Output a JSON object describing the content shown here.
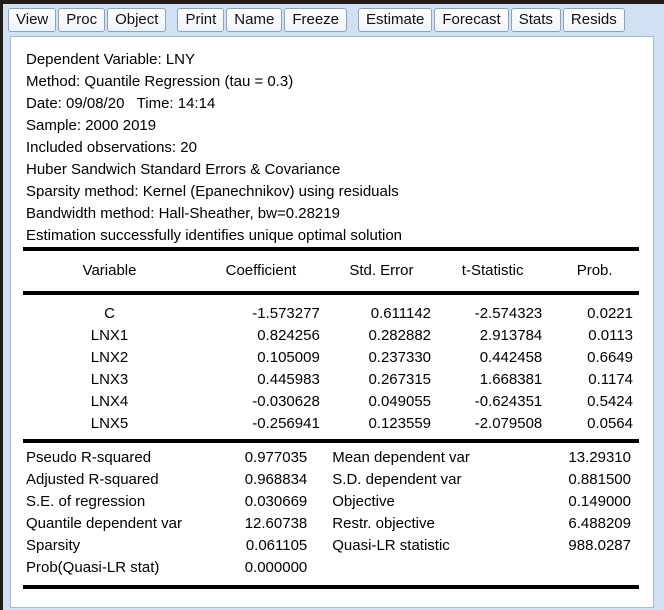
{
  "window": {
    "app": "EViews equation output",
    "colors": {
      "frame_blue": "#cfe1f3",
      "border_dark": "#241d17",
      "button_border": "#8ea3ba",
      "content_bg": "#ffffff",
      "text": "#000000"
    }
  },
  "toolbar": {
    "groups": [
      {
        "buttons": [
          "View",
          "Proc",
          "Object"
        ]
      },
      {
        "buttons": [
          "Print",
          "Name",
          "Freeze"
        ]
      },
      {
        "buttons": [
          "Estimate",
          "Forecast",
          "Stats",
          "Resids"
        ]
      }
    ]
  },
  "header_lines": [
    "Dependent Variable: LNY",
    "Method: Quantile Regression (tau = 0.3)",
    "Date: 09/08/20   Time: 14:14",
    "Sample: 2000 2019",
    "Included observations: 20",
    "Huber Sandwich Standard Errors & Covariance",
    "Sparsity method: Kernel (Epanechnikov) using residuals",
    "Bandwidth method: Hall-Sheather, bw=0.28219",
    "Estimation successfully identifies unique optimal solution"
  ],
  "coef_table": {
    "columns": [
      "Variable",
      "Coefficient",
      "Std. Error",
      "t-Statistic",
      "Prob."
    ],
    "rows": [
      [
        "C",
        "-1.573277",
        "0.611142",
        "-2.574323",
        "0.0221"
      ],
      [
        "LNX1",
        "0.824256",
        "0.282882",
        "2.913784",
        "0.0113"
      ],
      [
        "LNX2",
        "0.105009",
        "0.237330",
        "0.442458",
        "0.6649"
      ],
      [
        "LNX3",
        "0.445983",
        "0.267315",
        "1.668381",
        "0.1174"
      ],
      [
        "LNX4",
        "-0.030628",
        "0.049055",
        "-0.624351",
        "0.5424"
      ],
      [
        "LNX5",
        "-0.256941",
        "0.123559",
        "-2.079508",
        "0.0564"
      ]
    ]
  },
  "summary_stats": {
    "rows": [
      [
        "Pseudo R-squared",
        "0.977035",
        "Mean dependent var",
        "13.29310"
      ],
      [
        "Adjusted R-squared",
        "0.968834",
        "S.D. dependent var",
        "0.881500"
      ],
      [
        "S.E. of regression",
        "0.030669",
        "Objective",
        "0.149000"
      ],
      [
        "Quantile dependent var",
        "12.60738",
        "Restr. objective",
        "6.488209"
      ],
      [
        "Sparsity",
        "0.061105",
        "Quasi-LR statistic",
        "988.0287"
      ],
      [
        "Prob(Quasi-LR stat)",
        "0.000000",
        "",
        ""
      ]
    ]
  }
}
